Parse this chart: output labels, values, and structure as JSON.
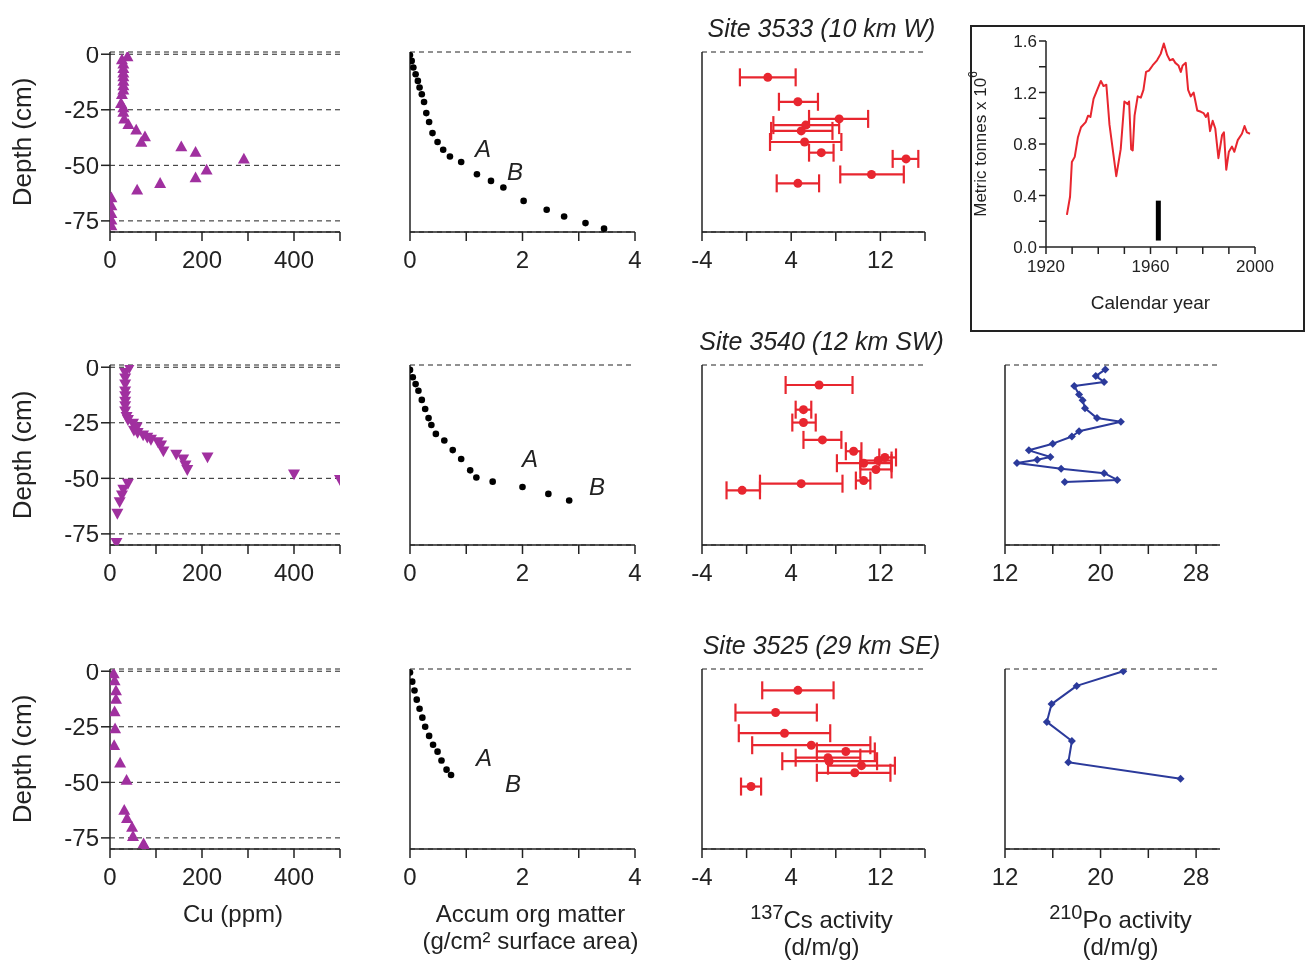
{
  "chart_data": [
    {
      "type": "scatter",
      "ylabel": "Depth (cm)",
      "color": "#a0309f",
      "marker": "triangle",
      "x": [
        38,
        26,
        29,
        29,
        29,
        29,
        29,
        29,
        29,
        26,
        24,
        29,
        29,
        31,
        40,
        57,
        76,
        68,
        155,
        186,
        291,
        210,
        186,
        109,
        59,
        3,
        3,
        3,
        3,
        3
      ],
      "values": [
        -1,
        -2.4,
        -4.3,
        -6.3,
        -8.3,
        -10,
        -12,
        -14,
        -16,
        -18,
        -22,
        -24,
        -26,
        -29,
        -31.5,
        -34,
        -37,
        -39.5,
        -41.5,
        -44,
        -47,
        -52,
        -55.5,
        -58,
        -61,
        -64.5,
        -68,
        -71.5,
        -74.5,
        -77
      ],
      "xlim": [
        0,
        500
      ],
      "xticks": [
        0,
        {
          "value": 100,
          "label": null
        },
        200,
        {
          "value": 300,
          "label": null
        },
        400,
        {
          "value": 500,
          "label": null
        }
      ],
      "ylim": [
        -80,
        1
      ],
      "yticks": [
        0,
        -25,
        -50,
        -75
      ],
      "grid": "y"
    },
    {
      "type": "scatter",
      "color": "#000000",
      "marker": "circle",
      "x": [
        0,
        0.03,
        0.06,
        0.1,
        0.14,
        0.17,
        0.21,
        0.25,
        0.29,
        0.34,
        0.4,
        0.49,
        0.59,
        0.71,
        0.91,
        1.19,
        1.44,
        1.66,
        2.02,
        2.43,
        2.74,
        3.12,
        3.45
      ],
      "values": [
        -0.4,
        -3,
        -6,
        -9,
        -12,
        -15,
        -18,
        -21.5,
        -26.5,
        -30.5,
        -35.5,
        -39.5,
        -43,
        -46,
        -48.5,
        -54,
        -57,
        -60,
        -66,
        -70,
        -73,
        -76,
        -78.5
      ],
      "annotations": [
        "A",
        "B"
      ],
      "xlim": [
        0,
        4
      ],
      "xticks": [
        0,
        {
          "value": 1,
          "label": null
        },
        2,
        {
          "value": 3,
          "label": null
        },
        4
      ],
      "ylim": [
        -80,
        1
      ],
      "yticks": [
        0,
        -25,
        -50,
        -75
      ],
      "grid": "y",
      "tick_labels": "x"
    },
    {
      "type": "scatter",
      "title": "Site 3533 (10 km W)",
      "color": "#e8262f",
      "marker": "circle",
      "x": [
        1.9,
        4.6,
        8.3,
        5.3,
        4.9,
        5.2,
        6.7,
        14.3,
        11.2,
        4.6
      ],
      "values": [
        -10.4,
        -21.4,
        -29.1,
        -31.9,
        -34.5,
        -39.5,
        -44.3,
        -47.1,
        -54.1,
        -58.1
      ],
      "xerrors": [
        [
          -0.6,
          4.4
        ],
        [
          2.9,
          6.4
        ],
        [
          5.6,
          10.9
        ],
        [
          2.4,
          8.3
        ],
        [
          2.2,
          7.7
        ],
        [
          2.1,
          8.5
        ],
        [
          5.6,
          7.8
        ],
        [
          13.1,
          15.4
        ],
        [
          8.4,
          14.1
        ],
        [
          2.7,
          6.5
        ]
      ],
      "xlim": [
        -4,
        16
      ],
      "xticks": [
        -4,
        {
          "value": 0,
          "label": null
        },
        4,
        {
          "value": 8,
          "label": null
        },
        12,
        {
          "value": 16,
          "label": null
        }
      ],
      "ylim": [
        -80,
        1
      ],
      "yticks": [
        0,
        -25,
        -50,
        -75
      ],
      "grid": "y",
      "tick_labels": "x"
    },
    {
      "type": "line",
      "xlabel": "Calendar year",
      "ylabel": "Metric tonnes x 10$^{6}$",
      "series": [
        {
          "color": "#e8262f",
          "x": [
            1928,
            1929.2,
            1929.9,
            1931,
            1932.2,
            1933.4,
            1935.2,
            1936.1,
            1937,
            1938.2,
            1939.4,
            1941,
            1942,
            1943.1,
            1944.3,
            1946.9,
            1948.6,
            1950,
            1951.3,
            1951.8,
            1952.6,
            1953.2,
            1953.9,
            1955.1,
            1956.3,
            1957.3,
            1958.3,
            1959.4,
            1960.8,
            1962.5,
            1963.9,
            1965.1,
            1966.4,
            1967.4,
            1968.6,
            1969.5,
            1970.7,
            1971.6,
            1972.3,
            1973.5,
            1974.4,
            1975.4,
            1976.5,
            1977.9,
            1979.3,
            1980.3,
            1981.2,
            1982,
            1982.8,
            1983.8,
            1984.8,
            1986,
            1987.4,
            1988.1,
            1989,
            1990,
            1991.2,
            1992.1,
            1993.4,
            1995,
            1996,
            1996.9,
            1998.1
          ],
          "values": [
            0.25,
            0.39,
            0.66,
            0.7,
            0.85,
            0.93,
            0.97,
            1.02,
            1.01,
            1.15,
            1.21,
            1.29,
            1.25,
            1.26,
            0.95,
            0.55,
            0.76,
            1.13,
            1.11,
            1.13,
            0.76,
            0.75,
            1.02,
            1.17,
            1.16,
            1.22,
            1.36,
            1.37,
            1.41,
            1.45,
            1.5,
            1.58,
            1.49,
            1.45,
            1.46,
            1.43,
            1.41,
            1.36,
            1.41,
            1.43,
            1.22,
            1.17,
            1.2,
            1.06,
            1.05,
            1.04,
            1.01,
            1.04,
            0.9,
            0.98,
            0.92,
            0.69,
            0.87,
            0.89,
            0.6,
            0.74,
            0.78,
            0.74,
            0.83,
            0.88,
            0.94,
            0.89,
            0.88
          ]
        },
        {
          "color": "#000000",
          "x": [
            1963,
            1963
          ],
          "values": [
            0.05,
            0.36
          ]
        }
      ],
      "xlim": [
        1920,
        2000
      ],
      "xticks": [
        1920,
        {
          "value": 1930,
          "label": null
        },
        {
          "value": 1940,
          "label": null
        },
        {
          "value": 1950,
          "label": null
        },
        1960,
        {
          "value": 1970,
          "label": null
        },
        {
          "value": 1980,
          "label": null
        },
        {
          "value": 1990,
          "label": null
        },
        2000
      ],
      "ylim": [
        0,
        1.6
      ],
      "yticks": [
        {
          "value": 0,
          "label": "0.0"
        },
        {
          "value": 0.2,
          "label": null
        },
        0.4,
        {
          "value": 0.6,
          "label": null
        },
        0.8,
        {
          "value": 1,
          "label": null
        },
        1.2,
        {
          "value": 1.4,
          "label": null
        },
        1.6
      ]
    },
    {
      "type": "scatter",
      "ylabel": "Depth (cm)",
      "color": "#a0309f",
      "marker": "triangle-down",
      "x": [
        42,
        33,
        33,
        33,
        33,
        33,
        33,
        33,
        33,
        36,
        39,
        50,
        58,
        52,
        60,
        72,
        81,
        89,
        104,
        111,
        116,
        144,
        159,
        164,
        168,
        212,
        400,
        500,
        39,
        29,
        26,
        21,
        16,
        14
      ],
      "values": [
        -0.4,
        -2.5,
        -5,
        -7.7,
        -10.8,
        -13,
        -15.4,
        -17.5,
        -19.8,
        -22.3,
        -23.7,
        -25.4,
        -27,
        -28.5,
        -29.5,
        -30.6,
        -31.6,
        -32.6,
        -33.7,
        -35.1,
        -37.8,
        -39.3,
        -41.4,
        -44.1,
        -46.2,
        -40.5,
        -48.2,
        -50.7,
        -52.4,
        -55.1,
        -57.6,
        -60.7,
        -65.9,
        -79
      ],
      "xlim": [
        0,
        500
      ],
      "xticks": [
        0,
        {
          "value": 100,
          "label": null
        },
        200,
        {
          "value": 300,
          "label": null
        },
        400,
        {
          "value": 500,
          "label": null
        }
      ],
      "ylim": [
        -80,
        1
      ],
      "yticks": [
        0,
        -25,
        -50,
        -75
      ],
      "grid": "y"
    },
    {
      "type": "scatter",
      "color": "#000000",
      "marker": "circle",
      "x": [
        0,
        0.05,
        0.1,
        0.15,
        0.21,
        0.27,
        0.33,
        0.38,
        0.46,
        0.61,
        0.76,
        0.91,
        1.07,
        1.18,
        1.47,
        2,
        2.46,
        2.83
      ],
      "values": [
        -1.2,
        -4.5,
        -7.6,
        -10.6,
        -14.7,
        -18.8,
        -22.9,
        -26,
        -30,
        -33,
        -37.3,
        -41.3,
        -46.4,
        -49.6,
        -51.5,
        -53.9,
        -57,
        -60
      ],
      "annotations": [
        "A",
        "B"
      ],
      "xlim": [
        0,
        4
      ],
      "xticks": [
        0,
        {
          "value": 1,
          "label": null
        },
        2,
        {
          "value": 3,
          "label": null
        },
        4
      ],
      "ylim": [
        -80,
        1
      ],
      "yticks": [
        0,
        -25,
        -50,
        -75
      ],
      "grid": "y",
      "tick_labels": "x"
    },
    {
      "type": "scatter",
      "title": "Site 3540 (12 km SW)",
      "color": "#e8262f",
      "marker": "circle",
      "x": [
        6.5,
        5.1,
        5.1,
        6.8,
        9.6,
        12.4,
        11.8,
        10.5,
        11.6,
        10.5,
        4.9,
        -0.4
      ],
      "values": [
        -8,
        -19.1,
        -24.9,
        -32.7,
        -37.8,
        -40.6,
        -42,
        -43.2,
        -46,
        -51,
        -52.4,
        -55.4
      ],
      "xerrors": [
        [
          3.5,
          9.5
        ],
        [
          4.4,
          5.8
        ],
        [
          4.1,
          6.2
        ],
        [
          5.1,
          8.5
        ],
        [
          8.9,
          10.3
        ],
        [
          11.9,
          13.4
        ],
        [
          10.2,
          13
        ],
        [
          8.1,
          13
        ],
        [
          10.2,
          13
        ],
        [
          9.8,
          11.1
        ],
        [
          1.2,
          8.6
        ],
        [
          -1.8,
          1.2
        ]
      ],
      "xlim": [
        -4,
        16
      ],
      "xticks": [
        -4,
        {
          "value": 0,
          "label": null
        },
        4,
        {
          "value": 8,
          "label": null
        },
        12,
        {
          "value": 16,
          "label": null
        }
      ],
      "ylim": [
        -80,
        1
      ],
      "yticks": [
        0,
        -25,
        -50,
        -75
      ],
      "grid": "y",
      "tick_labels": "x"
    },
    {
      "type": "line",
      "color": "#2b3a9b",
      "marker": "diamond",
      "x": [
        20.4,
        19.6,
        20.3,
        17.8,
        18.2,
        18.5,
        18.7,
        19.7,
        21.7,
        18.2,
        17.6,
        16,
        14,
        15.8,
        14.7,
        13,
        16.7,
        20.3,
        21.4,
        17
      ],
      "values": [
        -1,
        -4,
        -6.6,
        -8.5,
        -12.3,
        -14.9,
        -18.5,
        -22.9,
        -24.5,
        -28.8,
        -31.2,
        -34.4,
        -37.4,
        -40.4,
        -41.6,
        -43.1,
        -45.7,
        -47.7,
        -50.7,
        -51.7
      ],
      "xlim": [
        12,
        30
      ],
      "xticks": [
        12,
        {
          "value": 16,
          "label": null
        },
        20,
        {
          "value": 24,
          "label": null
        },
        28
      ],
      "ylim": [
        -80,
        1
      ],
      "yticks": [
        0,
        -25,
        -50,
        -75
      ],
      "grid": "y",
      "tick_labels": "x"
    },
    {
      "type": "scatter",
      "ylabel": "Depth (cm)",
      "xlabel": "Cu (ppm)",
      "color": "#a0309f",
      "marker": "triangle",
      "x": [
        8,
        10,
        13,
        13,
        10,
        11,
        9,
        22,
        36,
        31,
        37,
        48,
        50,
        73,
        76
      ],
      "values": [
        -1,
        -4.2,
        -8.7,
        -12.5,
        -18.1,
        -25.8,
        -33.3,
        -41.2,
        -48.9,
        -62.4,
        -66.1,
        -70.1,
        -74.2,
        -77.5,
        -79
      ],
      "xlim": [
        0,
        500
      ],
      "xticks": [
        0,
        {
          "value": 100,
          "label": null
        },
        200,
        {
          "value": 300,
          "label": null
        },
        400,
        {
          "value": 500,
          "label": null
        }
      ],
      "ylim": [
        -80,
        1
      ],
      "yticks": [
        0,
        -25,
        -50,
        -75
      ],
      "grid": "y"
    },
    {
      "type": "scatter",
      "xlabel": "Accum org matter (g/cm² surface area)",
      "color": "#000000",
      "marker": "circle",
      "x": [
        0,
        0.04,
        0.08,
        0.12,
        0.17,
        0.22,
        0.27,
        0.34,
        0.41,
        0.49,
        0.56,
        0.65,
        0.73
      ],
      "values": [
        -0.6,
        -4.7,
        -8.7,
        -12.8,
        -16.9,
        -20.9,
        -25,
        -29.1,
        -33.1,
        -36.2,
        -40.2,
        -44.3,
        -46.7
      ],
      "annotations": [
        "A",
        "B"
      ],
      "xlim": [
        0,
        4
      ],
      "xticks": [
        0,
        {
          "value": 1,
          "label": null
        },
        2,
        {
          "value": 3,
          "label": null
        },
        4
      ],
      "ylim": [
        -80,
        1
      ],
      "yticks": [
        0,
        -25,
        -50,
        -75
      ],
      "grid": "y",
      "tick_labels": "x"
    },
    {
      "type": "scatter",
      "title": "Site 3525 (29 km SE)",
      "xlabel": "$^{137}$Cs activity (d/m/g)",
      "color": "#e8262f",
      "marker": "circle",
      "x": [
        4.6,
        2.6,
        3.4,
        5.8,
        8.9,
        7.3,
        7.4,
        10.3,
        9.7,
        0.4
      ],
      "values": [
        -8.6,
        -18.6,
        -27.9,
        -33.3,
        -36.1,
        -38.9,
        -40.5,
        -42.5,
        -45.7,
        -51.9
      ],
      "xerrors": [
        [
          1.4,
          7.8
        ],
        [
          -1,
          6.3
        ],
        [
          -0.7,
          7.5
        ],
        [
          0.5,
          11.1
        ],
        [
          6.3,
          11.5
        ],
        [
          4.4,
          10.2
        ],
        [
          3.2,
          11.7
        ],
        [
          7.3,
          13.3
        ],
        [
          6.3,
          12.9
        ],
        [
          -0.5,
          1.3
        ]
      ],
      "xlim": [
        -4,
        16
      ],
      "xticks": [
        -4,
        {
          "value": 0,
          "label": null
        },
        4,
        {
          "value": 8,
          "label": null
        },
        12,
        {
          "value": 16,
          "label": null
        }
      ],
      "ylim": [
        -80,
        1
      ],
      "yticks": [
        0,
        -25,
        -50,
        -75
      ],
      "grid": "y",
      "tick_labels": "x"
    },
    {
      "type": "line",
      "xlabel": "$^{210}$Po activity (d/m/g)",
      "color": "#2b3a9b",
      "marker": "diamond",
      "x": [
        21.9,
        18,
        15.9,
        15.5,
        17.6,
        17.3,
        26.7
      ],
      "values": [
        0,
        -6.6,
        -14.8,
        -22.8,
        -31.4,
        -41,
        -48.4
      ],
      "xlim": [
        12,
        30
      ],
      "xticks": [
        12,
        {
          "value": 16,
          "label": null
        },
        20,
        {
          "value": 24,
          "label": null
        },
        28
      ],
      "ylim": [
        -80,
        1
      ],
      "yticks": [
        0,
        -25,
        -50,
        -75
      ],
      "grid": "y",
      "tick_labels": "x"
    }
  ]
}
